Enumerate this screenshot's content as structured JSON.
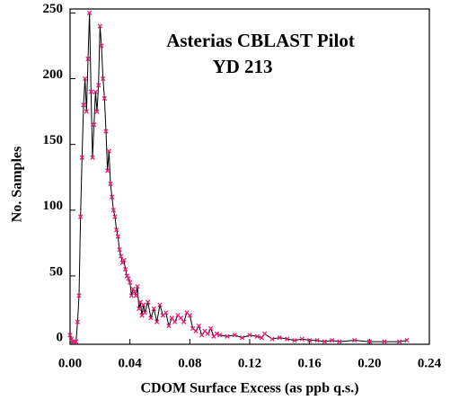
{
  "chart_data": {
    "type": "line",
    "title": "Asterias CBLAST Pilot",
    "subtitle": "YD 213",
    "xlabel": "CDOM Surface Excess (as ppb q.s.)",
    "ylabel": "No. Samples",
    "x": [
      0.0,
      0.001,
      0.002,
      0.003,
      0.004,
      0.005,
      0.006,
      0.007,
      0.008,
      0.009,
      0.01,
      0.011,
      0.012,
      0.013,
      0.014,
      0.015,
      0.016,
      0.017,
      0.018,
      0.019,
      0.02,
      0.021,
      0.022,
      0.023,
      0.024,
      0.025,
      0.026,
      0.027,
      0.028,
      0.029,
      0.03,
      0.031,
      0.032,
      0.033,
      0.034,
      0.035,
      0.036,
      0.037,
      0.038,
      0.039,
      0.04,
      0.041,
      0.042,
      0.043,
      0.044,
      0.045,
      0.046,
      0.047,
      0.048,
      0.049,
      0.05,
      0.052,
      0.054,
      0.056,
      0.058,
      0.06,
      0.062,
      0.064,
      0.066,
      0.068,
      0.07,
      0.072,
      0.074,
      0.076,
      0.078,
      0.08,
      0.082,
      0.084,
      0.086,
      0.088,
      0.09,
      0.092,
      0.094,
      0.096,
      0.098,
      0.1,
      0.105,
      0.11,
      0.115,
      0.12,
      0.125,
      0.128,
      0.13,
      0.135,
      0.14,
      0.145,
      0.15,
      0.155,
      0.16,
      0.165,
      0.17,
      0.175,
      0.18,
      0.19,
      0.2,
      0.21,
      0.22,
      0.225
    ],
    "values": [
      5,
      2,
      0,
      0,
      0,
      15,
      35,
      95,
      140,
      180,
      200,
      175,
      215,
      250,
      190,
      140,
      165,
      190,
      175,
      195,
      240,
      225,
      200,
      185,
      160,
      130,
      145,
      120,
      110,
      100,
      95,
      85,
      80,
      70,
      65,
      60,
      62,
      55,
      50,
      48,
      45,
      35,
      40,
      38,
      35,
      42,
      25,
      30,
      20,
      28,
      22,
      30,
      18,
      25,
      15,
      28,
      20,
      22,
      12,
      18,
      15,
      20,
      18,
      15,
      22,
      20,
      10,
      8,
      12,
      5,
      8,
      6,
      10,
      4,
      6,
      5,
      4,
      5,
      3,
      5,
      4,
      3,
      6,
      2,
      3,
      2,
      1,
      2,
      1,
      1,
      0,
      1,
      0,
      1,
      0,
      0,
      0,
      1
    ],
    "color": "#000000",
    "marker_color": "#e8207a",
    "xlim": [
      0,
      0.24
    ],
    "ylim": [
      -2,
      253
    ],
    "xticks": [
      {
        "value": 0,
        "label": "0.00"
      },
      0.04,
      0.08,
      0.12,
      0.16,
      {
        "value": 0.2,
        "label": "0.20"
      },
      0.24
    ],
    "yticks": [
      0,
      50,
      100,
      150,
      200,
      250
    ]
  }
}
